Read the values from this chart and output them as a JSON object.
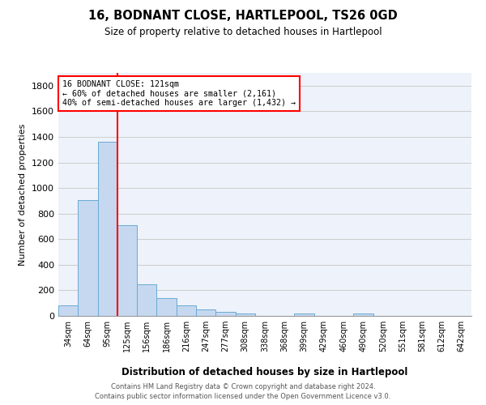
{
  "title": "16, BODNANT CLOSE, HARTLEPOOL, TS26 0GD",
  "subtitle": "Size of property relative to detached houses in Hartlepool",
  "xlabel": "Distribution of detached houses by size in Hartlepool",
  "ylabel": "Number of detached properties",
  "categories": [
    "34sqm",
    "64sqm",
    "95sqm",
    "125sqm",
    "156sqm",
    "186sqm",
    "216sqm",
    "247sqm",
    "277sqm",
    "308sqm",
    "338sqm",
    "368sqm",
    "399sqm",
    "429sqm",
    "460sqm",
    "490sqm",
    "520sqm",
    "551sqm",
    "581sqm",
    "612sqm",
    "642sqm"
  ],
  "values": [
    85,
    905,
    1360,
    710,
    245,
    140,
    85,
    52,
    30,
    18,
    0,
    0,
    18,
    0,
    0,
    18,
    0,
    0,
    0,
    0,
    0
  ],
  "bar_color": "#c5d8f0",
  "bar_edge_color": "#6aaad4",
  "vline_color": "red",
  "annotation_line1": "16 BODNANT CLOSE: 121sqm",
  "annotation_line2": "← 60% of detached houses are smaller (2,161)",
  "annotation_line3": "40% of semi-detached houses are larger (1,432) →",
  "ylim": [
    0,
    1900
  ],
  "yticks": [
    0,
    200,
    400,
    600,
    800,
    1000,
    1200,
    1400,
    1600,
    1800
  ],
  "footer": "Contains HM Land Registry data © Crown copyright and database right 2024.\nContains public sector information licensed under the Open Government Licence v3.0.",
  "grid_color": "#cccccc",
  "bg_color": "#eef2fa"
}
